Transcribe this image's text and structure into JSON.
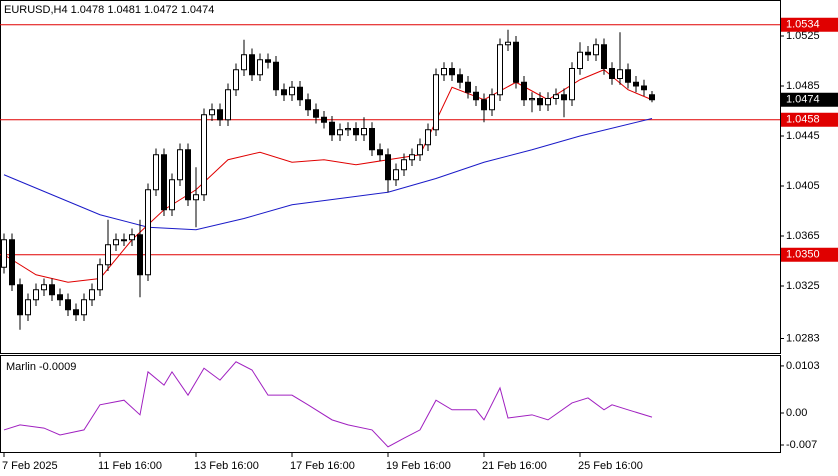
{
  "chart_data": {
    "type": "candlestick",
    "title": "EURUSD,H4  1.0478 1.0481 1.0472 1.0474",
    "categories": [
      "7 Feb 2025",
      null,
      null,
      null,
      null,
      null,
      null,
      null,
      null,
      null,
      null,
      null,
      "11 Feb 16:00",
      null,
      null,
      null,
      null,
      null,
      null,
      null,
      null,
      null,
      null,
      null,
      "13 Feb 16:00",
      null,
      null,
      null,
      null,
      null,
      null,
      null,
      null,
      null,
      null,
      null,
      "17 Feb 16:00",
      null,
      null,
      null,
      null,
      null,
      null,
      null,
      null,
      null,
      null,
      null,
      "19 Feb 16:00",
      null,
      null,
      null,
      null,
      null,
      null,
      null,
      null,
      null,
      null,
      null,
      "21 Feb 16:00",
      null,
      null,
      null,
      null,
      null,
      null,
      null,
      null,
      null,
      null,
      null,
      "25 Feb 16:00",
      null,
      null,
      null,
      null,
      null,
      null,
      null,
      null,
      null
    ],
    "open": [
      1.034,
      1.0362,
      1.0326,
      1.0302,
      1.0314,
      1.0322,
      1.0326,
      1.0318,
      1.0314,
      1.0306,
      1.0302,
      1.0314,
      1.0322,
      1.0342,
      1.0358,
      1.0362,
      1.0362,
      1.0366,
      1.0334,
      1.0402,
      1.043,
      1.0386,
      1.041,
      1.0434,
      1.0394,
      1.0398,
      1.0462,
      1.0466,
      1.0458,
      1.0482,
      1.0498,
      1.051,
      1.0494,
      1.0506,
      1.0504,
      1.0482,
      1.0478,
      1.0484,
      1.0474,
      1.0466,
      1.046,
      1.0456,
      1.0446,
      1.045,
      1.0451,
      1.0446,
      1.0451,
      1.0434,
      1.043,
      1.041,
      1.0418,
      1.0426,
      1.043,
      1.0438,
      1.045,
      1.0494,
      1.0499,
      1.0494,
      1.0488,
      1.048,
      1.0474,
      1.0466,
      1.0478,
      1.0518,
      1.052,
      1.0488,
      1.0474,
      1.0475,
      1.047,
      1.0475,
      1.0478,
      1.0474,
      1.0499,
      1.0512,
      1.051,
      1.0518,
      1.0499,
      1.0491,
      1.0498,
      1.0488,
      1.0485,
      1.0478
    ],
    "high": [
      1.0367,
      1.0367,
      1.0331,
      1.0319,
      1.0327,
      1.0331,
      1.0331,
      1.0323,
      1.0319,
      1.0311,
      1.0319,
      1.0327,
      1.0347,
      1.0378,
      1.0367,
      1.0367,
      1.0371,
      1.0378,
      1.0407,
      1.0435,
      1.0435,
      1.0415,
      1.0439,
      1.0439,
      1.042,
      1.0467,
      1.0471,
      1.0471,
      1.0487,
      1.0503,
      1.0522,
      1.0515,
      1.0511,
      1.0511,
      1.0509,
      1.0487,
      1.0489,
      1.0489,
      1.0479,
      1.0471,
      1.0465,
      1.0461,
      1.0455,
      1.0456,
      1.0456,
      1.046,
      1.0456,
      1.0439,
      1.0435,
      1.0423,
      1.0431,
      1.0435,
      1.0443,
      1.0455,
      1.0499,
      1.0504,
      1.0504,
      1.0499,
      1.0493,
      1.0485,
      1.0479,
      1.0483,
      1.0523,
      1.053,
      1.0525,
      1.0493,
      1.048,
      1.048,
      1.048,
      1.0483,
      1.0483,
      1.0504,
      1.052,
      1.0517,
      1.0523,
      1.0523,
      1.0504,
      1.0528,
      1.0503,
      1.0493,
      1.049,
      1.0481
    ],
    "low": [
      1.0335,
      1.0321,
      1.029,
      1.0297,
      1.0309,
      1.0317,
      1.0313,
      1.0309,
      1.0301,
      1.0297,
      1.0297,
      1.0309,
      1.0317,
      1.0337,
      1.0353,
      1.0357,
      1.0357,
      1.0316,
      1.0329,
      1.0397,
      1.0381,
      1.0381,
      1.0405,
      1.0389,
      1.0372,
      1.0393,
      1.0457,
      1.0453,
      1.0453,
      1.0477,
      1.0493,
      1.0489,
      1.0489,
      1.0499,
      1.0477,
      1.0473,
      1.0473,
      1.0469,
      1.0461,
      1.0455,
      1.0451,
      1.0441,
      1.0441,
      1.0445,
      1.0441,
      1.0441,
      1.0429,
      1.0425,
      1.04,
      1.0405,
      1.0413,
      1.0421,
      1.0425,
      1.0433,
      1.0445,
      1.0489,
      1.0489,
      1.0483,
      1.0475,
      1.0469,
      1.0456,
      1.0461,
      1.0473,
      1.0513,
      1.0483,
      1.0469,
      1.0464,
      1.0465,
      1.0465,
      1.047,
      1.046,
      1.0469,
      1.0494,
      1.0505,
      1.0505,
      1.0494,
      1.0486,
      1.0486,
      1.0483,
      1.048,
      1.0477,
      1.0472
    ],
    "close": [
      1.0362,
      1.0326,
      1.0302,
      1.0314,
      1.0322,
      1.0326,
      1.0318,
      1.0314,
      1.0306,
      1.0302,
      1.0314,
      1.0322,
      1.0342,
      1.0358,
      1.0362,
      1.0362,
      1.0366,
      1.0334,
      1.0402,
      1.043,
      1.0386,
      1.041,
      1.0434,
      1.0394,
      1.0398,
      1.0462,
      1.0466,
      1.0458,
      1.0482,
      1.0498,
      1.051,
      1.0494,
      1.0506,
      1.0504,
      1.0482,
      1.0478,
      1.0484,
      1.0474,
      1.0466,
      1.046,
      1.0456,
      1.0446,
      1.045,
      1.0451,
      1.0446,
      1.0451,
      1.0434,
      1.043,
      1.041,
      1.0418,
      1.0426,
      1.043,
      1.0438,
      1.045,
      1.0494,
      1.0499,
      1.0494,
      1.0488,
      1.048,
      1.0474,
      1.0466,
      1.0478,
      1.0518,
      1.052,
      1.0488,
      1.0474,
      1.0475,
      1.047,
      1.0475,
      1.0478,
      1.0474,
      1.0499,
      1.0512,
      1.051,
      1.0518,
      1.0499,
      1.0491,
      1.0498,
      1.0488,
      1.0485,
      1.0482,
      1.0474
    ],
    "ylim": [
      1.02706,
      1.05538
    ],
    "yticks": [
      1.0525,
      1.0485,
      1.0445,
      1.0405,
      1.0365,
      1.0325,
      1.0283
    ],
    "levels": [
      1.0534,
      1.0458,
      {
        "value": 1.035,
        "label": "1.0350"
      }
    ],
    "level_color": "#e00000",
    "current_price": 1.0474,
    "overlays": [
      {
        "color": "#e00000",
        "x": [
          0,
          4,
          8,
          12,
          16,
          20,
          24,
          28,
          32,
          36,
          40,
          44,
          48,
          52,
          56,
          60,
          64,
          68,
          72,
          75,
          78,
          81
        ],
        "values": [
          1.035,
          1.0334,
          1.0328,
          1.0331,
          1.0362,
          1.0386,
          1.0402,
          1.0426,
          1.0432,
          1.0424,
          1.0426,
          1.0422,
          1.0426,
          1.043,
          1.0484,
          1.0474,
          1.0488,
          1.0474,
          1.049,
          1.0498,
          1.0482,
          1.0474
        ]
      },
      {
        "color": "#1a1ac8",
        "x": [
          0,
          6,
          12,
          18,
          24,
          30,
          36,
          42,
          48,
          54,
          60,
          66,
          72,
          81
        ],
        "values": [
          1.0414,
          1.0398,
          1.0382,
          1.0372,
          1.037,
          1.0379,
          1.039,
          1.0395,
          1.04,
          1.0411,
          1.0424,
          1.0434,
          1.0445,
          1.0459
        ]
      }
    ],
    "indicator": {
      "label": "Marlin -0.0009",
      "color": "#a020c0",
      "x": [
        0,
        2,
        5,
        7,
        10,
        12,
        15,
        17,
        18,
        20,
        21,
        23,
        25,
        27,
        29,
        31,
        33,
        36,
        38,
        41,
        43,
        46,
        48,
        50,
        52,
        54,
        56,
        59,
        60,
        62,
        63,
        66,
        68,
        71,
        73,
        75,
        76,
        78,
        81
      ],
      "values": [
        -0.0037,
        -0.0026,
        -0.0033,
        -0.0048,
        -0.0037,
        0.0018,
        0.0028,
        -0.0004,
        0.009,
        0.0061,
        0.009,
        0.0039,
        0.0098,
        0.0072,
        0.0112,
        0.0094,
        0.0039,
        0.0039,
        0.0018,
        -0.0015,
        -0.0026,
        -0.0037,
        -0.0074,
        -0.0055,
        -0.0037,
        0.0028,
        0.0007,
        0.0007,
        -0.0015,
        0.0055,
        -0.0011,
        -0.0004,
        -0.0015,
        0.0022,
        0.0033,
        0.0007,
        0.0018,
        0.0007,
        -0.0009
      ],
      "ylim": [
        -0.00875,
        0.01247
      ],
      "yticks": [
        0.0103,
        {
          "value": 0,
          "label": "0.00"
        },
        -0.007
      ]
    }
  }
}
